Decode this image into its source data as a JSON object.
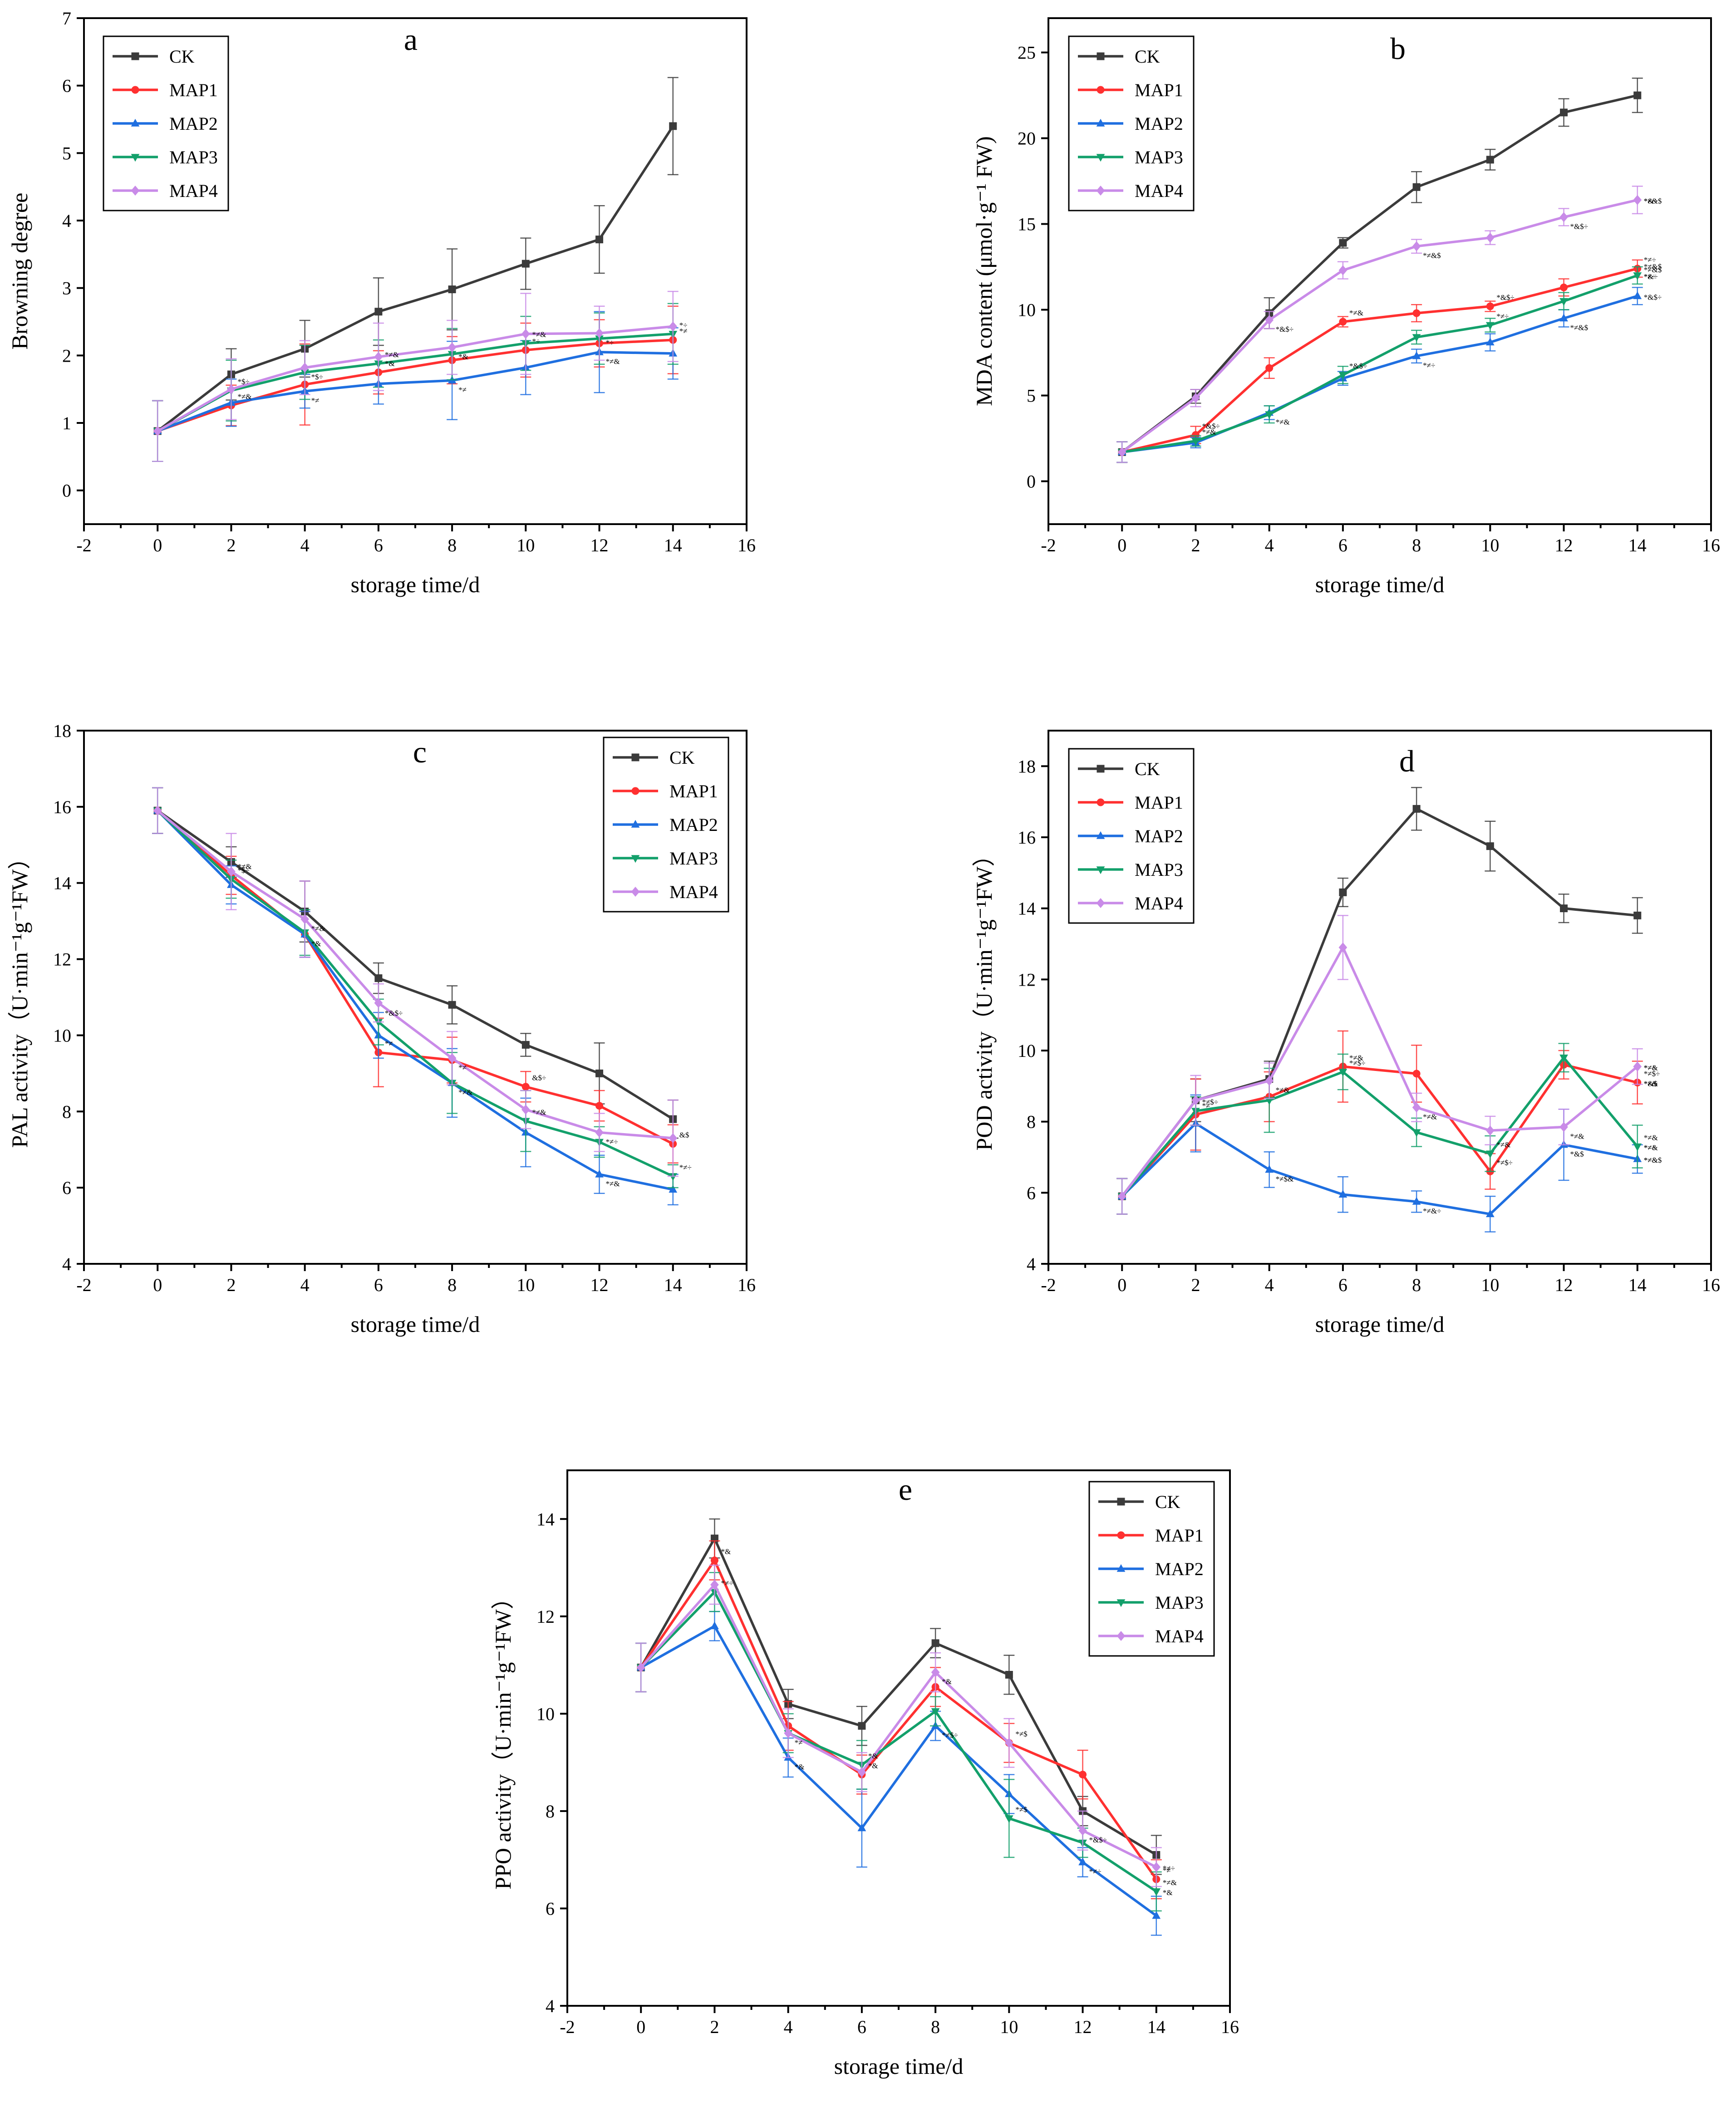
{
  "colors": {
    "CK": "#3b3b3b",
    "MAP1": "#ff3030",
    "MAP2": "#1f6fe0",
    "MAP3": "#13a06b",
    "MAP4": "#c98be8"
  },
  "chart_data": [
    {
      "id": "a",
      "type": "line",
      "panel_label": "a",
      "xlabel": "storage time/d",
      "ylabel": "Browning degree",
      "xlim": [
        -2,
        16
      ],
      "ylim": [
        -0.5,
        7
      ],
      "xticks": [
        -2,
        0,
        2,
        4,
        6,
        8,
        10,
        12,
        14,
        16
      ],
      "yticks": [
        0,
        1,
        2,
        3,
        4,
        5,
        6,
        7
      ],
      "legend": [
        "CK",
        "MAP1",
        "MAP2",
        "MAP3",
        "MAP4"
      ],
      "legend_position": "top-left",
      "x": [
        0,
        2,
        4,
        6,
        8,
        10,
        12,
        14
      ],
      "series": [
        {
          "name": "CK",
          "marker": "square",
          "values": [
            0.88,
            1.72,
            2.1,
            2.65,
            2.98,
            3.36,
            3.72,
            5.4
          ],
          "errors": [
            0.45,
            0.38,
            0.42,
            0.5,
            0.6,
            0.38,
            0.5,
            0.72
          ]
        },
        {
          "name": "MAP1",
          "marker": "circle",
          "values": [
            0.88,
            1.26,
            1.57,
            1.75,
            1.93,
            2.08,
            2.18,
            2.23
          ],
          "errors": [
            0.45,
            0.3,
            0.6,
            0.32,
            0.35,
            0.4,
            0.35,
            0.5
          ]
        },
        {
          "name": "MAP2",
          "marker": "triangle-up",
          "values": [
            0.88,
            1.3,
            1.47,
            1.58,
            1.63,
            1.82,
            2.05,
            2.03
          ],
          "errors": [
            0.45,
            0.35,
            0.25,
            0.3,
            0.58,
            0.4,
            0.6,
            0.38
          ]
        },
        {
          "name": "MAP3",
          "marker": "triangle-down",
          "values": [
            0.88,
            1.48,
            1.75,
            1.88,
            2.02,
            2.18,
            2.25,
            2.32
          ],
          "errors": [
            0.45,
            0.45,
            0.4,
            0.35,
            0.38,
            0.4,
            0.38,
            0.45
          ]
        },
        {
          "name": "MAP4",
          "marker": "diamond",
          "values": [
            0.88,
            1.5,
            1.82,
            1.98,
            2.12,
            2.32,
            2.33,
            2.43
          ],
          "errors": [
            0.45,
            0.45,
            0.4,
            0.5,
            0.4,
            0.6,
            0.4,
            0.52
          ]
        }
      ],
      "annotations": [
        "*≠&",
        "*$÷",
        "*≠",
        "*$÷",
        "*&",
        "*≠&",
        "*≠",
        "*&",
        "*÷",
        "*≠&",
        "*≠&",
        "*÷",
        "*≠",
        "*÷"
      ]
    },
    {
      "id": "b",
      "type": "line",
      "panel_label": "b",
      "xlabel": "storage time/d",
      "ylabel": "MDA content (μmol·g⁻¹ FW)",
      "xlim": [
        -2,
        16
      ],
      "ylim": [
        -2.5,
        27
      ],
      "xticks": [
        -2,
        0,
        2,
        4,
        6,
        8,
        10,
        12,
        14,
        16
      ],
      "yticks": [
        0,
        5,
        10,
        15,
        20,
        25
      ],
      "legend": [
        "CK",
        "MAP1",
        "MAP2",
        "MAP3",
        "MAP4"
      ],
      "legend_position": "top-left",
      "x": [
        0,
        2,
        4,
        6,
        8,
        10,
        12,
        14
      ],
      "series": [
        {
          "name": "CK",
          "marker": "square",
          "values": [
            1.7,
            4.95,
            9.8,
            13.9,
            17.15,
            18.75,
            21.5,
            22.5
          ],
          "errors": [
            0.6,
            0.4,
            0.9,
            0.3,
            0.9,
            0.6,
            0.8,
            1.0
          ]
        },
        {
          "name": "MAP1",
          "marker": "circle",
          "values": [
            1.7,
            2.7,
            6.6,
            9.3,
            9.8,
            10.2,
            11.3,
            12.4
          ],
          "errors": [
            0.6,
            0.5,
            0.6,
            0.3,
            0.5,
            0.3,
            0.5,
            0.5
          ]
        },
        {
          "name": "MAP2",
          "marker": "triangle-up",
          "values": [
            1.7,
            2.25,
            4.0,
            6.0,
            7.3,
            8.1,
            9.5,
            10.8
          ],
          "errors": [
            0.6,
            0.3,
            0.4,
            0.4,
            0.4,
            0.5,
            0.5,
            0.5
          ]
        },
        {
          "name": "MAP3",
          "marker": "triangle-down",
          "values": [
            1.7,
            2.35,
            3.9,
            6.2,
            8.4,
            9.1,
            10.5,
            12.0
          ],
          "errors": [
            0.6,
            0.3,
            0.5,
            0.5,
            0.4,
            0.4,
            0.5,
            0.5
          ]
        },
        {
          "name": "MAP4",
          "marker": "diamond",
          "values": [
            1.7,
            4.85,
            9.4,
            12.3,
            13.7,
            14.2,
            15.4,
            16.4
          ],
          "errors": [
            0.6,
            0.5,
            0.5,
            0.5,
            0.4,
            0.4,
            0.5,
            0.8
          ]
        }
      ],
      "annotations": [
        "*&$÷",
        "*≠&",
        "*≠&",
        "*&$÷",
        "*≠&",
        "*&$÷",
        "*≠÷",
        "*≠&$",
        "*&$÷",
        "*≠÷",
        "*≠&$",
        "*&$÷",
        "*≠÷",
        "*≠&$",
        "*&÷",
        "*&÷",
        "*≠&$",
        "*&$÷",
        "*≠÷",
        "*≠&$"
      ]
    },
    {
      "id": "c",
      "type": "line",
      "panel_label": "c",
      "xlabel": "storage time/d",
      "ylabel": "PAL activity（U·min⁻¹g⁻¹FW）",
      "xlim": [
        -2,
        16
      ],
      "ylim": [
        4,
        18
      ],
      "xticks": [
        -2,
        0,
        2,
        4,
        6,
        8,
        10,
        12,
        14,
        16
      ],
      "yticks": [
        4,
        6,
        8,
        10,
        12,
        14,
        16,
        18
      ],
      "legend": [
        "CK",
        "MAP1",
        "MAP2",
        "MAP3",
        "MAP4"
      ],
      "legend_position": "top-right",
      "x": [
        0,
        2,
        4,
        6,
        8,
        10,
        12,
        14
      ],
      "series": [
        {
          "name": "CK",
          "marker": "square",
          "values": [
            15.9,
            14.55,
            13.25,
            11.5,
            10.8,
            9.75,
            9.0,
            7.8
          ],
          "errors": [
            0.6,
            0.4,
            0.8,
            0.4,
            0.5,
            0.3,
            0.8,
            0.5
          ]
        },
        {
          "name": "MAP1",
          "marker": "circle",
          "values": [
            15.9,
            14.2,
            12.65,
            9.55,
            9.35,
            8.65,
            8.15,
            7.15
          ],
          "errors": [
            0.6,
            0.5,
            0.6,
            0.9,
            0.6,
            0.4,
            0.4,
            0.5
          ]
        },
        {
          "name": "MAP2",
          "marker": "triangle-up",
          "values": [
            15.9,
            13.95,
            12.65,
            10.0,
            8.75,
            7.45,
            6.35,
            5.95
          ],
          "errors": [
            0.6,
            0.5,
            0.6,
            0.6,
            0.9,
            0.9,
            0.5,
            0.4
          ]
        },
        {
          "name": "MAP3",
          "marker": "triangle-down",
          "values": [
            15.9,
            14.1,
            12.7,
            10.35,
            8.75,
            7.75,
            7.2,
            6.3
          ],
          "errors": [
            0.6,
            0.5,
            0.6,
            0.6,
            0.8,
            0.8,
            0.4,
            0.3
          ]
        },
        {
          "name": "MAP4",
          "marker": "diamond",
          "values": [
            15.9,
            14.3,
            13.05,
            10.85,
            9.4,
            8.05,
            7.45,
            7.3
          ],
          "errors": [
            0.6,
            1.0,
            1.0,
            0.5,
            0.7,
            0.5,
            0.5,
            1.0
          ]
        }
      ],
      "annotations": [
        "*≠&",
        "*$÷",
        "*&",
        "*≠&",
        "*≠",
        "*&$÷",
        "*≠&",
        "*≠",
        "&$÷",
        "*≠&",
        "*≠&",
        "*≠÷",
        "&$",
        "*≠÷"
      ]
    },
    {
      "id": "d",
      "type": "line",
      "panel_label": "d",
      "xlabel": "storage time/d",
      "ylabel": "POD activity（U·min⁻¹g⁻¹FW）",
      "xlim": [
        -2,
        16
      ],
      "ylim": [
        4,
        19
      ],
      "xticks": [
        -2,
        0,
        2,
        4,
        6,
        8,
        10,
        12,
        14,
        16
      ],
      "yticks": [
        4,
        6,
        8,
        10,
        12,
        14,
        16,
        18
      ],
      "legend": [
        "CK",
        "MAP1",
        "MAP2",
        "MAP3",
        "MAP4"
      ],
      "legend_position": "top-left",
      "x": [
        0,
        2,
        4,
        6,
        8,
        10,
        12,
        14
      ],
      "series": [
        {
          "name": "CK",
          "marker": "square",
          "values": [
            5.9,
            8.6,
            9.2,
            14.45,
            16.8,
            15.75,
            14.0,
            13.8
          ],
          "errors": [
            0.5,
            0.6,
            0.5,
            0.4,
            0.6,
            0.7,
            0.4,
            0.5
          ]
        },
        {
          "name": "MAP1",
          "marker": "circle",
          "values": [
            5.9,
            8.2,
            8.7,
            9.55,
            9.35,
            6.6,
            9.6,
            9.1
          ],
          "errors": [
            0.5,
            1.0,
            0.7,
            1.0,
            0.8,
            0.5,
            0.4,
            0.6
          ]
        },
        {
          "name": "MAP2",
          "marker": "triangle-up",
          "values": [
            5.9,
            7.95,
            6.65,
            5.95,
            5.75,
            5.4,
            7.35,
            6.95
          ],
          "errors": [
            0.5,
            0.8,
            0.5,
            0.5,
            0.3,
            0.5,
            1.0,
            0.4
          ]
        },
        {
          "name": "MAP3",
          "marker": "triangle-down",
          "values": [
            5.9,
            8.3,
            8.6,
            9.4,
            7.7,
            7.1,
            9.8,
            7.3
          ],
          "errors": [
            0.5,
            0.4,
            0.9,
            0.5,
            0.4,
            0.5,
            0.4,
            0.6
          ]
        },
        {
          "name": "MAP4",
          "marker": "diamond",
          "values": [
            5.9,
            8.6,
            9.15,
            12.9,
            8.4,
            7.75,
            7.85,
            9.55
          ],
          "errors": [
            0.5,
            0.7,
            0.5,
            0.9,
            0.4,
            0.4,
            0.5,
            0.5
          ]
        }
      ],
      "annotations": [
        "*≠",
        "*≠$÷",
        "*≠$&",
        "*≠&",
        "*≠&",
        "*≠$÷",
        "*≠&÷",
        "*≠&",
        "*≠$÷",
        "*≠&",
        "*&$",
        "*≠&",
        "*≠$÷",
        "*≠&",
        "*≠&",
        "*≠&",
        "*≠&",
        "*≠&",
        "*≠÷",
        "*≠÷",
        "*&$",
        "*≠&$"
      ]
    },
    {
      "id": "e",
      "type": "line",
      "panel_label": "e",
      "xlabel": "storage time/d",
      "ylabel": "PPO activity（U·min⁻¹g⁻¹FW）",
      "xlim": [
        -2,
        16
      ],
      "ylim": [
        4,
        15
      ],
      "xticks": [
        -2,
        0,
        2,
        4,
        6,
        8,
        10,
        12,
        14,
        16
      ],
      "yticks": [
        4,
        6,
        8,
        10,
        12,
        14
      ],
      "legend": [
        "CK",
        "MAP1",
        "MAP2",
        "MAP3",
        "MAP4"
      ],
      "legend_position": "top-right",
      "x": [
        0,
        2,
        4,
        6,
        8,
        10,
        12,
        14
      ],
      "series": [
        {
          "name": "CK",
          "marker": "square",
          "values": [
            10.95,
            13.6,
            10.2,
            9.75,
            11.45,
            10.8,
            8.0,
            7.1
          ],
          "errors": [
            0.5,
            0.4,
            0.3,
            0.4,
            0.3,
            0.4,
            0.3,
            0.4
          ]
        },
        {
          "name": "MAP1",
          "marker": "circle",
          "values": [
            10.95,
            13.15,
            9.75,
            8.75,
            10.55,
            9.4,
            8.75,
            6.6
          ],
          "errors": [
            0.5,
            0.4,
            0.5,
            0.4,
            0.4,
            0.4,
            0.5,
            0.4
          ]
        },
        {
          "name": "MAP2",
          "marker": "triangle-up",
          "values": [
            10.95,
            11.8,
            9.1,
            7.65,
            9.75,
            8.35,
            6.95,
            5.85
          ],
          "errors": [
            0.5,
            0.3,
            0.4,
            0.8,
            0.3,
            0.4,
            0.3,
            0.4
          ]
        },
        {
          "name": "MAP3",
          "marker": "triangle-down",
          "values": [
            10.95,
            12.5,
            9.6,
            8.95,
            10.05,
            7.85,
            7.35,
            6.35
          ],
          "errors": [
            0.5,
            0.4,
            0.4,
            0.5,
            0.3,
            0.8,
            0.3,
            0.4
          ]
        },
        {
          "name": "MAP4",
          "marker": "diamond",
          "values": [
            10.95,
            12.65,
            9.6,
            8.8,
            10.85,
            9.4,
            7.6,
            6.85
          ],
          "errors": [
            0.5,
            0.4,
            0.5,
            0.4,
            0.4,
            0.5,
            0.4,
            0.4
          ]
        }
      ],
      "annotations": [
        "*&",
        "*≠÷",
        "*&",
        "*≠",
        "*&",
        "*&",
        "*≠$÷",
        "*&",
        "*≠$",
        "*≠$",
        "*≠÷",
        "*&$÷",
        "*≠",
        "*≠&",
        "*&",
        "*≠÷"
      ]
    }
  ]
}
